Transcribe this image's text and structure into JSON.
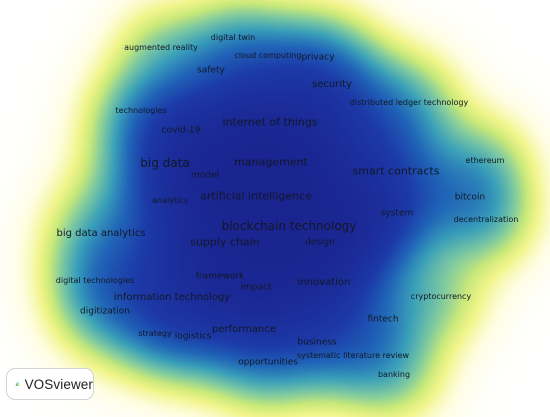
{
  "app": {
    "name": "VOSviewer",
    "view": "density visualization"
  },
  "colors": {
    "background": "#ffffff",
    "density_ramp": [
      "#ffffff",
      "#fffde0",
      "#f1f58a",
      "#c9e97a",
      "#7fcaa0",
      "#3aa0b9",
      "#2064b8",
      "#1c3aa8",
      "#1a238f"
    ],
    "label": "#111827",
    "logo_teal": "#23a5a6",
    "logo_green": "#78c043"
  },
  "terms": [
    {
      "id": "digital-twin",
      "label": "digital twin",
      "weight": 0.35
    },
    {
      "id": "augmented-reality",
      "label": "augmented reality",
      "weight": 0.35
    },
    {
      "id": "cloud-computing",
      "label": "cloud computing",
      "weight": 0.4
    },
    {
      "id": "privacy",
      "label": "privacy",
      "weight": 0.45
    },
    {
      "id": "safety",
      "label": "safety",
      "weight": 0.4
    },
    {
      "id": "security",
      "label": "security",
      "weight": 0.6
    },
    {
      "id": "distributed-ledger-technology",
      "label": "distributed ledger technology",
      "weight": 0.45
    },
    {
      "id": "technologies",
      "label": "technologies",
      "weight": 0.45
    },
    {
      "id": "internet-of-things",
      "label": "internet of things",
      "weight": 0.85
    },
    {
      "id": "covid-19",
      "label": "covid-19",
      "weight": 0.45
    },
    {
      "id": "big-data",
      "label": "big data",
      "weight": 0.9
    },
    {
      "id": "management",
      "label": "management",
      "weight": 0.9
    },
    {
      "id": "smart-contracts",
      "label": "smart contracts",
      "weight": 0.8
    },
    {
      "id": "ethereum",
      "label": "ethereum",
      "weight": 0.35
    },
    {
      "id": "model",
      "label": "model",
      "weight": 0.45
    },
    {
      "id": "artificial-intelligence",
      "label": "artificial intelligence",
      "weight": 0.85
    },
    {
      "id": "bitcoin",
      "label": "bitcoin",
      "weight": 0.45
    },
    {
      "id": "analytics",
      "label": "analytics",
      "weight": 0.35
    },
    {
      "id": "system",
      "label": "system",
      "weight": 0.55
    },
    {
      "id": "decentralization",
      "label": "decentralization",
      "weight": 0.4
    },
    {
      "id": "blockchain-technology",
      "label": "blockchain technology",
      "weight": 1.0
    },
    {
      "id": "big-data-analytics",
      "label": "big data analytics",
      "weight": 0.55
    },
    {
      "id": "supply-chain",
      "label": "supply chain",
      "weight": 0.9
    },
    {
      "id": "design",
      "label": "design",
      "weight": 0.55
    },
    {
      "id": "framework",
      "label": "framework",
      "weight": 0.55
    },
    {
      "id": "digital-technologies",
      "label": "digital technologies",
      "weight": 0.4
    },
    {
      "id": "innovation",
      "label": "innovation",
      "weight": 0.7
    },
    {
      "id": "impact",
      "label": "impact",
      "weight": 0.6
    },
    {
      "id": "information-technology",
      "label": "information technology",
      "weight": 0.6
    },
    {
      "id": "cryptocurrency",
      "label": "cryptocurrency",
      "weight": 0.35
    },
    {
      "id": "digitization",
      "label": "digitization",
      "weight": 0.45
    },
    {
      "id": "fintech",
      "label": "fintech",
      "weight": 0.55
    },
    {
      "id": "strategy",
      "label": "strategy",
      "weight": 0.35
    },
    {
      "id": "logistics",
      "label": "logistics",
      "weight": 0.45
    },
    {
      "id": "performance",
      "label": "performance",
      "weight": 0.55
    },
    {
      "id": "business",
      "label": "business",
      "weight": 0.4
    },
    {
      "id": "systematic-literature-review",
      "label": "systematic literature review",
      "weight": 0.4
    },
    {
      "id": "opportunities",
      "label": "opportunities",
      "weight": 0.5
    },
    {
      "id": "banking",
      "label": "banking",
      "weight": 0.4
    }
  ],
  "logo": {
    "text": "VOSviewer",
    "icon": "vosviewer-logo-icon"
  }
}
